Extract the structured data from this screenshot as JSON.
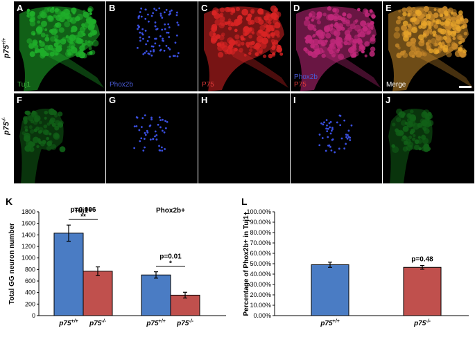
{
  "rows": [
    {
      "genotype": "p75",
      "sup": "+/+"
    },
    {
      "genotype": "p75",
      "sup": "-/-"
    }
  ],
  "panels": [
    {
      "letter": "A",
      "stain": [
        "Tuj1"
      ],
      "stain_colors": [
        "#3fb83f"
      ],
      "tint": "#1fae2a",
      "density": 1.0,
      "kind": "tissue"
    },
    {
      "letter": "B",
      "stain": [
        "Phox2b"
      ],
      "stain_colors": [
        "#4a5bd6"
      ],
      "tint": "#3a4fe0",
      "density": 1.0,
      "kind": "dots"
    },
    {
      "letter": "C",
      "stain": [
        "P75"
      ],
      "stain_colors": [
        "#e03a3a"
      ],
      "tint": "#d82424",
      "density": 1.0,
      "kind": "tissue"
    },
    {
      "letter": "D",
      "stain": [
        "Phox2b",
        "P75"
      ],
      "stain_colors": [
        "#4a5bd6",
        "#e03a3a"
      ],
      "tint": "#c0287a",
      "density": 1.0,
      "kind": "tissue"
    },
    {
      "letter": "E",
      "stain": [
        "Merge"
      ],
      "stain_colors": [
        "#ffffff"
      ],
      "tint": "#c98a2a",
      "density": 1.0,
      "kind": "tissue"
    },
    {
      "letter": "F",
      "stain": [],
      "stain_colors": [],
      "tint": "#1fae2a",
      "density": 0.55,
      "kind": "tissue"
    },
    {
      "letter": "G",
      "stain": [],
      "stain_colors": [],
      "tint": "#3a4fe0",
      "density": 0.5,
      "kind": "dots"
    },
    {
      "letter": "H",
      "stain": [],
      "stain_colors": [],
      "tint": "#000000",
      "density": 0.0,
      "kind": "empty"
    },
    {
      "letter": "I",
      "stain": [],
      "stain_colors": [],
      "tint": "#3a4fe0",
      "density": 0.5,
      "kind": "dots"
    },
    {
      "letter": "J",
      "stain": [],
      "stain_colors": [],
      "tint": "#1fae2a",
      "density": 0.55,
      "kind": "tissue"
    }
  ],
  "chart_data": [
    {
      "panel": "K",
      "type": "bar",
      "ylabel": "Total GG neuron number",
      "ylim": [
        0,
        1800
      ],
      "yticks": [
        0,
        200,
        400,
        600,
        800,
        1000,
        1200,
        1400,
        1600,
        1800
      ],
      "groups": [
        {
          "title": "Tuj1+",
          "bars": [
            {
              "label": "p75",
              "sup": "+/+",
              "value": 1430,
              "err": 140,
              "color": "#4a7cc4"
            },
            {
              "label": "p75",
              "sup": "-/-",
              "value": 770,
              "err": 75,
              "color": "#c0504d"
            }
          ],
          "pvalue": "p=0.006",
          "sig": "**"
        },
        {
          "title": "Phox2b+",
          "bars": [
            {
              "label": "p75",
              "sup": "+/+",
              "value": 705,
              "err": 55,
              "color": "#4a7cc4"
            },
            {
              "label": "p75",
              "sup": "-/-",
              "value": 355,
              "err": 50,
              "color": "#c0504d"
            }
          ],
          "pvalue": "p=0.01",
          "sig": "*"
        }
      ]
    },
    {
      "panel": "L",
      "type": "bar",
      "ylabel": "Percentage of Phox2b+ in Tuj1+",
      "ylim": [
        0,
        100
      ],
      "yticks": [
        "0.00%",
        "10.00%",
        "20.00%",
        "30.00%",
        "40.00%",
        "50.00%",
        "60.00%",
        "70.00%",
        "80.00%",
        "90.00%",
        "100.00%"
      ],
      "bars": [
        {
          "label": "p75",
          "sup": "+/+",
          "value": 49,
          "err": 2.5,
          "color": "#4a7cc4"
        },
        {
          "label": "p75",
          "sup": "-/-",
          "value": 46.5,
          "err": 1.8,
          "color": "#c0504d"
        }
      ],
      "pvalue": "p=0.48"
    }
  ]
}
